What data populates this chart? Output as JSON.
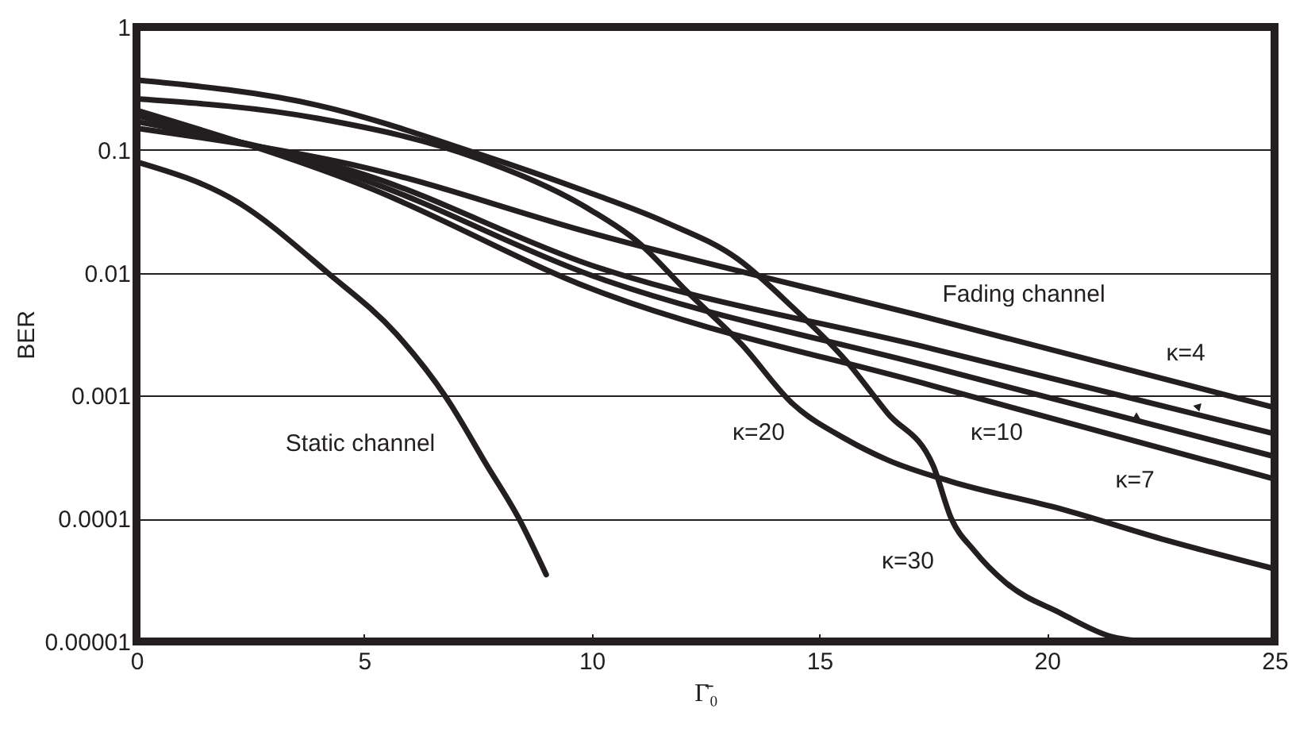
{
  "chart_data": {
    "type": "line",
    "xlabel": "Γ̄₀",
    "ylabel": "BER",
    "log": "y",
    "xlim": [
      0,
      25
    ],
    "xticks": [
      0,
      5,
      10,
      15,
      20,
      25
    ],
    "ylim": [
      1e-05,
      1
    ],
    "yticks": [
      {
        "value": 1e-05,
        "label": "0.00001"
      },
      0.0001,
      0.001,
      0.01,
      0.1,
      1
    ],
    "grid": "y",
    "marker": "none",
    "line_style": "solid",
    "series": [
      {
        "color": "#231f20",
        "x": [
          0,
          2.2,
          4.2,
          5.7,
          6.8,
          7.7,
          8.4,
          9.0
        ],
        "values": [
          0.08,
          0.038,
          0.01,
          0.0032,
          0.00097,
          0.00027,
          0.0001,
          3.5e-05
        ]
      },
      {
        "color": "#231f20",
        "x": [
          0,
          4,
          7.5,
          9.8,
          11.6,
          13.2,
          14.4,
          15.6,
          16.5,
          17.5,
          17.9,
          18.4,
          19.1,
          20.3,
          21.4,
          22.2
        ],
        "values": [
          0.37,
          0.23,
          0.093,
          0.047,
          0.026,
          0.013,
          0.0053,
          0.0019,
          0.00072,
          0.00027,
          0.0001,
          5.5e-05,
          3e-05,
          1.7e-05,
          1.1e-05,
          1e-05
        ]
      },
      {
        "color": "#231f20",
        "x": [
          0,
          4,
          7.5,
          10,
          11,
          12.1,
          13.3,
          14.4,
          15.6,
          16.5,
          17.9,
          20.3,
          22.6,
          25
        ],
        "values": [
          0.26,
          0.18,
          0.085,
          0.032,
          0.018,
          0.007,
          0.0026,
          0.00087,
          0.00044,
          0.0003,
          0.0002,
          0.00012,
          6.7e-05,
          3.9e-05
        ]
      },
      {
        "color": "#231f20",
        "x": [
          0,
          5,
          10,
          17.4,
          25
        ],
        "values": [
          0.15,
          0.072,
          0.021,
          0.0043,
          0.0008
        ]
      },
      {
        "color": "#231f20",
        "x": [
          0,
          5,
          10,
          17.5,
          25
        ],
        "values": [
          0.17,
          0.063,
          0.0115,
          0.0024,
          0.00049
        ]
      },
      {
        "color": "#231f20",
        "x": [
          0,
          5,
          10,
          17.5,
          25
        ],
        "values": [
          0.19,
          0.057,
          0.0095,
          0.0017,
          0.00032
        ]
      },
      {
        "color": "#231f20",
        "x": [
          0,
          5,
          10,
          17.5,
          25
        ],
        "values": [
          0.21,
          0.051,
          0.0074,
          0.0012,
          0.00021
        ]
      }
    ],
    "annotations": [
      "Static channel",
      "Fading channel",
      "κ=4",
      "κ=20",
      "κ=10",
      "κ=7",
      "κ=30"
    ]
  }
}
